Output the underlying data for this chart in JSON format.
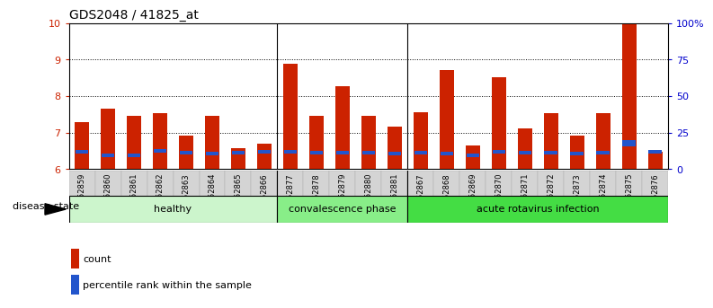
{
  "title": "GDS2048 / 41825_at",
  "samples": [
    "GSM52859",
    "GSM52860",
    "GSM52861",
    "GSM52862",
    "GSM52863",
    "GSM52864",
    "GSM52865",
    "GSM52866",
    "GSM52877",
    "GSM52878",
    "GSM52879",
    "GSM52880",
    "GSM52881",
    "GSM52867",
    "GSM52868",
    "GSM52869",
    "GSM52870",
    "GSM52871",
    "GSM52872",
    "GSM52873",
    "GSM52874",
    "GSM52875",
    "GSM52876"
  ],
  "count_values": [
    7.28,
    7.65,
    7.47,
    7.53,
    6.92,
    7.45,
    6.58,
    6.7,
    8.88,
    7.47,
    8.28,
    7.47,
    7.15,
    7.55,
    8.72,
    6.65,
    8.53,
    7.12,
    7.53,
    6.92,
    7.53,
    9.97,
    6.47
  ],
  "percentile_values": [
    6.48,
    6.38,
    6.38,
    6.5,
    6.45,
    6.42,
    6.45,
    6.48,
    6.48,
    6.45,
    6.45,
    6.45,
    6.42,
    6.45,
    6.42,
    6.38,
    6.48,
    6.45,
    6.45,
    6.42,
    6.45,
    6.7,
    6.47
  ],
  "blue_marker_heights": [
    0.1,
    0.1,
    0.1,
    0.1,
    0.1,
    0.09,
    0.1,
    0.1,
    0.1,
    0.1,
    0.1,
    0.1,
    0.1,
    0.1,
    0.09,
    0.09,
    0.1,
    0.09,
    0.09,
    0.09,
    0.09,
    0.18,
    0.12
  ],
  "groups": [
    {
      "label": "healthy",
      "start": 0,
      "end": 8,
      "color": "#ccf5cc"
    },
    {
      "label": "convalescence phase",
      "start": 8,
      "end": 13,
      "color": "#88ee88"
    },
    {
      "label": "acute rotavirus infection",
      "start": 13,
      "end": 23,
      "color": "#44dd44"
    }
  ],
  "bar_color": "#cc2200",
  "blue_color": "#2255cc",
  "ylim_left": [
    6,
    10
  ],
  "ylim_right": [
    0,
    100
  ],
  "yticks_left": [
    6,
    7,
    8,
    9,
    10
  ],
  "yticks_right": [
    0,
    25,
    50,
    75,
    100
  ],
  "ytick_labels_right": [
    "0",
    "25",
    "50",
    "75",
    "100%"
  ],
  "bar_width": 0.55,
  "legend_count_label": "count",
  "legend_percentile_label": "percentile rank within the sample",
  "disease_state_label": "disease state",
  "bar_color_red": "#cc2200",
  "blue_color_hex": "#2255cc",
  "ticklabel_bg": "#d0d0d0",
  "ylabel_right_color": "#0000cc",
  "ylabel_left_color": "#cc2200"
}
